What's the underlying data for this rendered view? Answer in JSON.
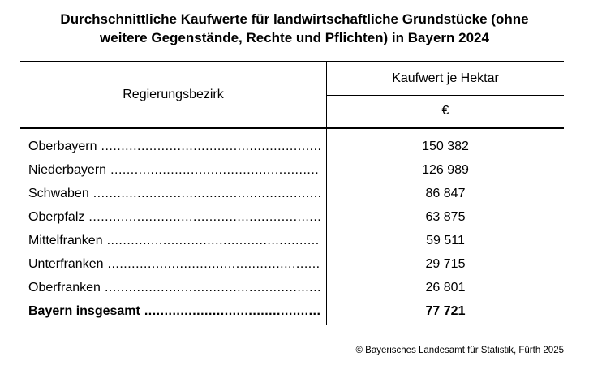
{
  "title": {
    "line1": "Durchschnittliche Kaufwerte für landwirtschaftliche Grundstücke (ohne",
    "line2": "weitere Gegenstände, Rechte und Pflichten) in Bayern 2024"
  },
  "table": {
    "col1_header": "Regierungsbezirk",
    "col2_header": "Kaufwert je Hektar",
    "col2_unit": "€",
    "rows": [
      {
        "label": "Oberbayern",
        "value": "150 382",
        "bold": false
      },
      {
        "label": "Niederbayern",
        "value": "126 989",
        "bold": false
      },
      {
        "label": "Schwaben",
        "value": "86 847",
        "bold": false
      },
      {
        "label": "Oberpfalz",
        "value": "63 875",
        "bold": false
      },
      {
        "label": "Mittelfranken",
        "value": "59 511",
        "bold": false
      },
      {
        "label": "Unterfranken",
        "value": "29 715",
        "bold": false
      },
      {
        "label": "Oberfranken",
        "value": "26 801",
        "bold": false
      },
      {
        "label": "Bayern insgesamt",
        "value": "77 721",
        "bold": true
      }
    ]
  },
  "footer": {
    "copyright": "© Bayerisches Landesamt für Statistik, Fürth 2025"
  },
  "colors": {
    "text": "#000000",
    "background": "#ffffff",
    "border": "#000000"
  },
  "chart_data": {
    "type": "table",
    "title": "Durchschnittliche Kaufwerte für landwirtschaftliche Grundstücke (ohne weitere Gegenstände, Rechte und Pflichten) in Bayern 2024",
    "columns": [
      "Regierungsbezirk",
      "Kaufwert je Hektar (€)"
    ],
    "categories": [
      "Oberbayern",
      "Niederbayern",
      "Schwaben",
      "Oberpfalz",
      "Mittelfranken",
      "Unterfranken",
      "Oberfranken",
      "Bayern insgesamt"
    ],
    "values": [
      150382,
      126989,
      86847,
      63875,
      59511,
      29715,
      26801,
      77721
    ],
    "unit": "€",
    "source": "© Bayerisches Landesamt für Statistik, Fürth 2025"
  }
}
